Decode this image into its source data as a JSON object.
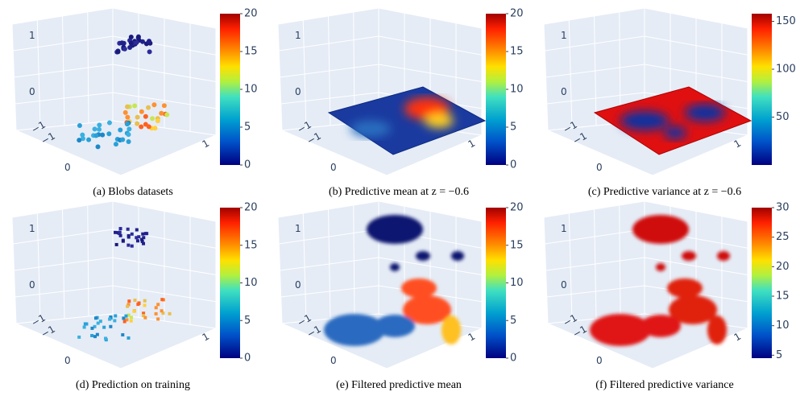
{
  "figure": {
    "panels": [
      {
        "caption": "(a) Blobs datasets",
        "axis_labels": [
          "1",
          "0",
          "−1",
          "−1",
          "0",
          "1"
        ],
        "colorbar": {
          "range": [
            0,
            20
          ],
          "ticks": [
            0,
            5,
            10,
            15,
            20
          ]
        }
      },
      {
        "caption": "(b) Predictive mean at z = −0.6",
        "axis_labels": [
          "1",
          "0",
          "−1",
          "−1",
          "0",
          "1"
        ],
        "colorbar": {
          "range": [
            0,
            20
          ],
          "ticks": [
            0,
            5,
            10,
            15,
            20
          ]
        }
      },
      {
        "caption": "(c) Predictive variance at z = −0.6",
        "axis_labels": [
          "1",
          "0",
          "−1",
          "−1",
          "0",
          "1"
        ],
        "colorbar": {
          "range": [
            0,
            158
          ],
          "ticks": [
            50,
            100,
            150
          ]
        }
      },
      {
        "caption": "(d) Prediction on training",
        "axis_labels": [
          "1",
          "0",
          "−1",
          "−1",
          "0",
          "1"
        ],
        "colorbar": {
          "range": [
            0,
            20
          ],
          "ticks": [
            0,
            5,
            10,
            15,
            20
          ]
        }
      },
      {
        "caption": "(e) Filtered predictive mean",
        "axis_labels": [
          "1",
          "0",
          "−1",
          "−1",
          "0",
          "1"
        ],
        "colorbar": {
          "range": [
            0,
            20
          ],
          "ticks": [
            0,
            5,
            10,
            15,
            20
          ]
        }
      },
      {
        "caption": "(f) Filtered predictive variance",
        "axis_labels": [
          "1",
          "0",
          "−1",
          "−1",
          "0",
          "1"
        ],
        "colorbar": {
          "range": [
            4.5,
            30
          ],
          "ticks": [
            5,
            10,
            15,
            20,
            25,
            30
          ]
        }
      }
    ]
  }
}
